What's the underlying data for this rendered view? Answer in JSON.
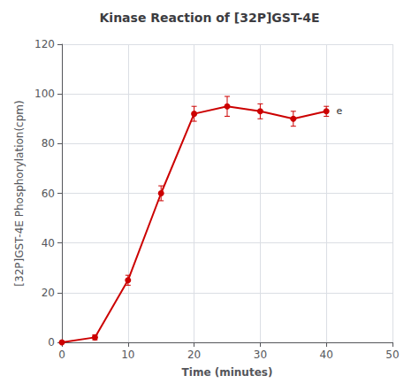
{
  "chart_data": {
    "type": "line",
    "title": "Kinase Reaction of [32P]GST-4E",
    "xlabel": "Time (minutes)",
    "ylabel": "[32P]GST-4E Phosphorylation(cpm)",
    "x": [
      0,
      5,
      10,
      15,
      20,
      25,
      30,
      35,
      40
    ],
    "values": [
      0,
      2,
      25,
      60,
      92,
      95,
      93,
      90,
      93
    ],
    "error": [
      0,
      1,
      2,
      3,
      3,
      4,
      3,
      3,
      2
    ],
    "xlim": [
      0,
      50
    ],
    "ylim": [
      0,
      120
    ],
    "xticks": [
      0,
      10,
      20,
      30,
      40,
      50
    ],
    "yticks": [
      0,
      20,
      40,
      60,
      80,
      100,
      120
    ],
    "color": "#cc0000",
    "marker": "circle",
    "grid": true,
    "annotations": [
      {
        "text": "e",
        "x": 41.5,
        "y": 91
      }
    ]
  }
}
